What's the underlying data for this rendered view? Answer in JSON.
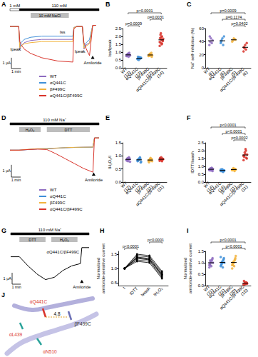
{
  "chart_data": [
    {
      "panel": "A",
      "type": "line",
      "tick_labels": false,
      "legend": "bottom-left",
      "x": [
        0,
        55,
        62,
        70,
        90,
        130,
        200,
        300,
        395,
        402,
        420,
        455,
        465,
        480,
        500,
        520,
        540
      ],
      "xlim": [
        0,
        560
      ],
      "ylim": [
        -4,
        0.5
      ],
      "series": [
        {
          "name": "WT",
          "color": "#8e6cc0",
          "values": [
            -0.1,
            -0.1,
            -2.2,
            -1.9,
            -1.6,
            -1.4,
            -1.3,
            -1.3,
            -1.3,
            -0.2,
            -0.1,
            -0.1,
            -2.2,
            -1.8,
            -1.6,
            0,
            0
          ]
        },
        {
          "name": "αQ441C",
          "color": "#3f8fd8",
          "values": [
            -0.1,
            -0.1,
            -2.0,
            -1.6,
            -1.3,
            -1.1,
            -1.0,
            -1.0,
            -1.0,
            -0.2,
            -0.1,
            -0.1,
            -2.0,
            -1.6,
            -1.3,
            0,
            0
          ]
        },
        {
          "name": "βF499C",
          "color": "#f2b33d",
          "values": [
            -0.1,
            -0.1,
            -2.1,
            -1.9,
            -1.7,
            -1.6,
            -1.5,
            -1.5,
            -1.5,
            -0.2,
            -0.1,
            -0.1,
            -2.1,
            -1.9,
            -1.7,
            0,
            0
          ]
        },
        {
          "name": "αQ441C/βF499C",
          "color": "#d9342b",
          "values": [
            -0.1,
            -0.1,
            -1.5,
            -1.8,
            -2.2,
            -2.6,
            -3.0,
            -3.3,
            -3.4,
            -0.3,
            -0.1,
            -0.1,
            -1.6,
            -2.2,
            -2.8,
            0,
            0
          ]
        }
      ],
      "solution_bars": [
        {
          "label": "1 mM",
          "start": 0,
          "end": 60,
          "color": "#ffffff"
        },
        {
          "label": "110 mM",
          "start": 60,
          "end": 560,
          "color": "#000000"
        }
      ],
      "drug_bars": [
        {
          "label": "10 mM NaCl",
          "start": 130,
          "end": 370,
          "color": "#bdbdbd"
        }
      ],
      "annotations": [
        {
          "text": "Iss",
          "x": 330,
          "y": -0.6
        },
        {
          "text": "Ipeak",
          "x": 35,
          "y": -2.2
        },
        {
          "text": "Ipeak",
          "x": 440,
          "y": -2.4
        },
        {
          "text": "Amiloride",
          "x": 520,
          "y": -3.0,
          "marker": "triangle"
        }
      ],
      "scale_bar": {
        "x": 60,
        "x_label": "1 min",
        "y": 1,
        "y_label": "1 μA"
      }
    },
    {
      "panel": "B",
      "type": "scatter",
      "y_label": "Iss/Ipeak",
      "grid": false,
      "categories": [
        "WT\n(13)",
        "αQ441C\n(13)",
        "βF499C\n(12)",
        "αQ441C/βF499C\n(14)"
      ],
      "colors": [
        "#8e6cc0",
        "#3f8fd8",
        "#f2b33d",
        "#d9342b"
      ],
      "values": [
        [
          0.75,
          0.8,
          0.85,
          0.9,
          0.78,
          0.82,
          0.88,
          0.7,
          0.95,
          0.8,
          0.76,
          0.84,
          0.9
        ],
        [
          0.55,
          0.6,
          0.65,
          0.58,
          0.62,
          0.7,
          0.5,
          0.6,
          0.66,
          0.63,
          0.57,
          0.61,
          0.68
        ],
        [
          0.75,
          0.8,
          0.9,
          0.85,
          0.7,
          0.82,
          0.88,
          0.78,
          0.95,
          0.8,
          0.76,
          0.84
        ],
        [
          1.4,
          1.6,
          1.8,
          2.0,
          1.7,
          1.9,
          2.2,
          1.5,
          1.75,
          1.85,
          1.65,
          2.1,
          1.95,
          1.55
        ]
      ],
      "ylim": [
        0,
        2.5
      ],
      "yticks": [
        {
          "value": 0,
          "label": "0.0"
        },
        {
          "value": 0.5,
          "label": "0.5"
        },
        {
          "value": 1,
          "label": "1.0"
        },
        {
          "value": 1.5,
          "label": "1.5"
        },
        {
          "value": 2,
          "label": "2.0"
        },
        {
          "value": 2.5,
          "label": "2.5"
        }
      ],
      "comparisons": [
        {
          "from": 0,
          "to": 1,
          "label": "p=0.0009"
        },
        {
          "from": 2,
          "to": 3,
          "label": "p=0.0031"
        },
        {
          "from": 0,
          "to": 3,
          "label": "p<0.0001"
        }
      ]
    },
    {
      "panel": "C",
      "type": "scatter",
      "y_label": "Na⁺ self-inhibition (%)",
      "grid": false,
      "categories": [
        "WT\n(6)",
        "αQ441C\n(6)",
        "βF499C\n(5)",
        "αQ441C/βF499C\n(6)"
      ],
      "colors": [
        "#8e6cc0",
        "#3f8fd8",
        "#f2b33d",
        "#d9342b"
      ],
      "values": [
        [
          35,
          40,
          45,
          38,
          42,
          48
        ],
        [
          38,
          42,
          45,
          35,
          48,
          40
        ],
        [
          40,
          42,
          45,
          44,
          43
        ],
        [
          25,
          30,
          35,
          28,
          38,
          32
        ]
      ],
      "ylim": [
        0,
        60
      ],
      "yticks": [
        0,
        20,
        40,
        60
      ],
      "comparisons": [
        {
          "from": 2,
          "to": 3,
          "label": "p=0.0402"
        },
        {
          "from": 1,
          "to": 3,
          "label": "p=0.1174"
        },
        {
          "from": 0,
          "to": 3,
          "label": "p=0.0009"
        }
      ]
    },
    {
      "panel": "D",
      "type": "line",
      "tick_labels": false,
      "legend": "bottom-left",
      "x": [
        0,
        60,
        120,
        180,
        240,
        300,
        360,
        420,
        480,
        540,
        550,
        580
      ],
      "xlim": [
        0,
        580
      ],
      "ylim": [
        -3.2,
        0.3
      ],
      "series": [
        {
          "name": "WT",
          "color": "#8e6cc0",
          "values": [
            -1.0,
            -1.0,
            -0.95,
            -0.9,
            -0.9,
            -0.85,
            -0.8,
            -0.78,
            -0.76,
            -0.75,
            0,
            0
          ]
        },
        {
          "name": "αQ441C",
          "color": "#3f8fd8",
          "values": [
            -1.0,
            -1.0,
            -0.95,
            -0.9,
            -0.88,
            -0.84,
            -0.8,
            -0.78,
            -0.77,
            -0.76,
            0,
            0
          ]
        },
        {
          "name": "βF499C",
          "color": "#f2b33d",
          "values": [
            -1.0,
            -1.0,
            -0.93,
            -0.88,
            -0.87,
            -0.83,
            -0.8,
            -0.77,
            -0.76,
            -0.75,
            0,
            0
          ]
        },
        {
          "name": "αQ441C/βF499C",
          "color": "#d9342b",
          "values": [
            -1.0,
            -1.0,
            -0.95,
            -0.92,
            -0.95,
            -1.3,
            -1.7,
            -2.1,
            -2.5,
            -2.8,
            0,
            0
          ]
        }
      ],
      "solution_bars": [
        {
          "label": "110 mM Na⁺",
          "start": 0,
          "end": 580,
          "color": "#000000"
        }
      ],
      "drug_bars": [
        {
          "label": "H₂O₂",
          "start": 60,
          "end": 200,
          "color": "#bdbdbd"
        },
        {
          "label": "DTT",
          "start": 240,
          "end": 520,
          "color": "#bdbdbd"
        }
      ],
      "annotations": [
        {
          "text": "Amiloride",
          "x": 545,
          "y": -3.0,
          "marker": "triangle"
        }
      ],
      "scale_bar": {
        "x": 60,
        "x_label": "1 min",
        "y": 1,
        "y_label": "1 μA"
      }
    },
    {
      "panel": "E",
      "type": "scatter",
      "y_label": "IH₂O₂/I",
      "grid": false,
      "categories": [
        "WT\n(12)",
        "αQ441C\n(12)",
        "βF499C\n(11)",
        "αQ441C/βF499C\n(11)"
      ],
      "colors": [
        "#8e6cc0",
        "#3f8fd8",
        "#f2b33d",
        "#d9342b"
      ],
      "values": [
        [
          0.85,
          0.9,
          0.8,
          0.95,
          0.88,
          0.82,
          0.9,
          0.86,
          0.92,
          0.78,
          0.84,
          0.89
        ],
        [
          0.8,
          0.85,
          0.9,
          0.95,
          0.75,
          0.82,
          0.88,
          0.86,
          0.9,
          0.78,
          0.84,
          0.87
        ],
        [
          0.8,
          0.85,
          0.9,
          0.82,
          0.88,
          0.76,
          0.84,
          0.92,
          0.86,
          0.8,
          0.83
        ],
        [
          0.85,
          0.9,
          0.95,
          0.8,
          0.88,
          0.92,
          0.86,
          0.83,
          0.9,
          0.87,
          0.81
        ]
      ],
      "ylim": [
        0,
        1.5
      ],
      "yticks": [
        {
          "value": 0,
          "label": "0.0"
        },
        {
          "value": 0.5,
          "label": "0.5"
        },
        {
          "value": 1,
          "label": "1.0"
        },
        {
          "value": 1.5,
          "label": "1.5"
        }
      ]
    },
    {
      "panel": "F",
      "type": "scatter",
      "y_label": "IDTT/Iwash",
      "grid": false,
      "categories": [
        "WT\n(14)",
        "αQ441C\n(14)",
        "βF499C\n(11)",
        "αQ441C/βF499C\n(11)"
      ],
      "colors": [
        "#8e6cc0",
        "#3f8fd8",
        "#f2b33d",
        "#d9342b"
      ],
      "values": [
        [
          0.75,
          0.8,
          0.85,
          0.9,
          0.7,
          0.82,
          0.78,
          0.88,
          0.76,
          0.84,
          0.8,
          0.86,
          0.74,
          0.9
        ],
        [
          0.7,
          0.75,
          0.8,
          0.65,
          0.72,
          0.78,
          0.82,
          0.68,
          0.76,
          0.74,
          0.8,
          0.7,
          0.77,
          0.73
        ],
        [
          0.75,
          0.8,
          0.85,
          0.7,
          0.82,
          0.78,
          0.88,
          0.76,
          0.84,
          0.8,
          0.79
        ],
        [
          1.4,
          1.6,
          1.8,
          2.0,
          1.5,
          1.7,
          1.9,
          2.1,
          1.55,
          1.75,
          1.65
        ]
      ],
      "ylim": [
        0,
        2.5
      ],
      "yticks": [
        {
          "value": 0,
          "label": "0.0"
        },
        {
          "value": 0.5,
          "label": "0.5"
        },
        {
          "value": 1,
          "label": "1.0"
        },
        {
          "value": 1.5,
          "label": "1.5"
        },
        {
          "value": 2,
          "label": "2.0"
        },
        {
          "value": 2.5,
          "label": "2.5"
        }
      ],
      "comparisons": [
        {
          "from": 2,
          "to": 3,
          "label": "p=0.0002"
        },
        {
          "from": 1,
          "to": 3,
          "label": "p<0.0001"
        },
        {
          "from": 0,
          "to": 3,
          "label": "p<0.0001"
        }
      ]
    },
    {
      "panel": "G",
      "type": "line",
      "tick_labels": false,
      "x": [
        0,
        60,
        120,
        180,
        240,
        300,
        360,
        420,
        480,
        490,
        540
      ],
      "xlim": [
        0,
        540
      ],
      "ylim": [
        -3.2,
        0.3
      ],
      "series": [
        {
          "color": "#000000",
          "values": [
            -0.8,
            -0.8,
            -1.6,
            -2.3,
            -2.8,
            -2.6,
            -2.0,
            -1.6,
            -1.4,
            0,
            0
          ]
        }
      ],
      "solution_bars": [
        {
          "label": "110 mM Na⁺",
          "start": 0,
          "end": 540,
          "color": "#000000"
        }
      ],
      "drug_bars": [
        {
          "label": "DTT",
          "start": 60,
          "end": 240,
          "color": "#bdbdbd"
        },
        {
          "label": "H₂O₂",
          "start": 280,
          "end": 460,
          "color": "#bdbdbd"
        }
      ],
      "annotations": [
        {
          "text": "αQ441C/βF499C",
          "x": 360,
          "y": -0.4
        },
        {
          "text": "Amiloride",
          "x": 490,
          "y": -3.0,
          "marker": "triangle"
        }
      ],
      "scale_bar": {
        "x": 60,
        "x_label": "1 min",
        "y": 1,
        "y_label": "1 μA"
      }
    },
    {
      "panel": "H",
      "type": "line",
      "y_label": "Normalized\namiloride-sensitive current",
      "grid": false,
      "color": "#000000",
      "marker": "circle",
      "categories": [
        "I",
        "IDTT",
        "Iwash",
        "IH₂O₂"
      ],
      "series": [
        {
          "values": [
            1,
            1.35,
            1.3,
            0.75
          ]
        },
        {
          "values": [
            1,
            1.45,
            1.4,
            0.85
          ]
        },
        {
          "values": [
            1,
            1.3,
            1.25,
            0.7
          ]
        },
        {
          "values": [
            1,
            1.5,
            1.45,
            0.9
          ]
        },
        {
          "values": [
            1,
            1.4,
            1.35,
            0.8
          ]
        },
        {
          "values": [
            1,
            1.25,
            1.2,
            0.65
          ]
        },
        {
          "values": [
            1,
            1.38,
            1.32,
            0.78
          ]
        }
      ],
      "ylim": [
        0.4,
        1.6
      ],
      "yticks": [
        {
          "value": 0.5,
          "label": "0.5"
        },
        {
          "value": 1,
          "label": "1.0"
        },
        {
          "value": 1.5,
          "label": "1.5"
        }
      ],
      "comparisons": [
        {
          "from": 0,
          "to": 1,
          "label": "p<0.0001"
        },
        {
          "from": 2,
          "to": 3,
          "label": "p<0.0001"
        }
      ]
    },
    {
      "panel": "I",
      "type": "scatter",
      "y_label": "Normalized\namiloride-sensitive current",
      "grid": false,
      "categories": [
        "WT\n(21)",
        "αQ441C\n(21)",
        "βF499C\n(20)",
        "αQ441C/βF499C\n(15)"
      ],
      "colors": [
        "#8e6cc0",
        "#3f8fd8",
        "#f2b33d",
        "#d9342b"
      ],
      "values": [
        [
          0.8,
          0.9,
          1.0,
          1.1,
          1.2,
          0.95,
          1.05,
          0.85,
          1.15,
          1.0,
          0.9,
          1.1
        ],
        [
          0.85,
          0.95,
          1.0,
          1.1,
          1.2,
          0.9,
          1.05,
          0.8,
          1.15,
          1.0,
          1.25,
          0.95
        ],
        [
          0.75,
          0.9,
          1.0,
          1.1,
          1.2,
          0.95,
          1.05,
          0.85,
          1.15,
          1.3,
          0.9,
          1.0
        ],
        [
          0.05,
          0.1,
          0.15,
          0.08,
          0.12,
          0.2,
          0.06,
          0.1,
          0.14,
          0.09
        ]
      ],
      "ylim": [
        0,
        1.5
      ],
      "yticks": [
        {
          "value": 0,
          "label": "0.0"
        },
        {
          "value": 0.5,
          "label": "0.5"
        },
        {
          "value": 1,
          "label": "1.0"
        },
        {
          "value": 1.5,
          "label": "1.5"
        }
      ],
      "comparisons": [
        {
          "from": 1,
          "to": 3,
          "label": "p<0.0001"
        },
        {
          "from": 0,
          "to": 3,
          "label": "p<0.0001"
        }
      ]
    }
  ],
  "structure": {
    "panel": "J",
    "labels": [
      {
        "text": "αQ441C",
        "color": "#d9342b"
      },
      {
        "text": "βF499C",
        "color": "#333333"
      },
      {
        "text": "4.8",
        "color": "#000000"
      },
      {
        "text": "αL439",
        "color": "#d9342b"
      },
      {
        "text": "αN510",
        "color": "#d9342b"
      }
    ]
  }
}
